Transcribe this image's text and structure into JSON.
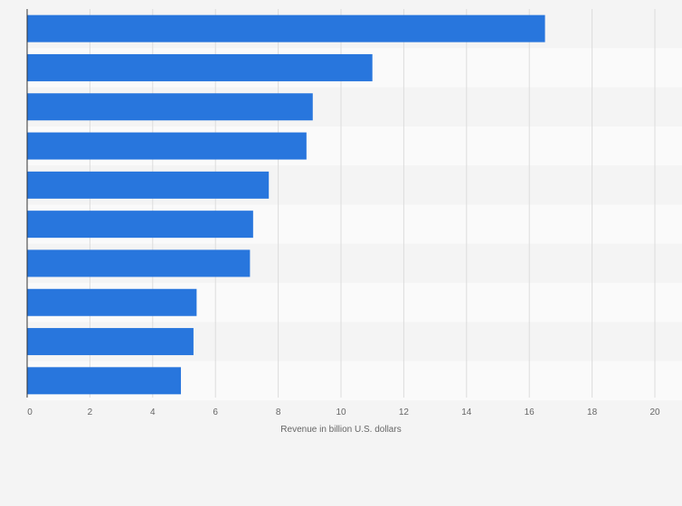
{
  "colors": {
    "background": "#f4f4f4",
    "band_light": "#fafafa",
    "band_dark": "#f4f4f4",
    "grid": "#dcdcdc",
    "axis": "#333333",
    "bar": "#2876dd",
    "text": "#666666"
  },
  "chart_data": {
    "type": "bar",
    "orientation": "horizontal",
    "categories": [
      "",
      "",
      "",
      "",
      "",
      "",
      "",
      "",
      "",
      ""
    ],
    "values": [
      16.5,
      11.0,
      9.1,
      8.9,
      7.7,
      7.2,
      7.1,
      5.4,
      5.3,
      4.9
    ],
    "xlabel": "Revenue in billion U.S. dollars",
    "xlim": [
      0,
      20
    ],
    "xticks": [
      "0",
      "2",
      "4",
      "6",
      "8",
      "10",
      "12",
      "14",
      "16",
      "18",
      "20"
    ],
    "grid": true,
    "legend": "none"
  }
}
